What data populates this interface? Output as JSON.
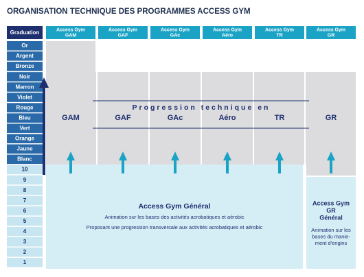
{
  "title": "ORGANISATION TECHNIQUE DES PROGRAMMES ACCESS GYM",
  "graduation": {
    "header": "Graduation",
    "grades": [
      "Or",
      "Argent",
      "Bronze",
      "Noir",
      "Marron",
      "Violet",
      "Rouge",
      "Bleu",
      "Vert",
      "Orange",
      "Jaune",
      "Blanc"
    ],
    "levels": [
      "10",
      "9",
      "8",
      "7",
      "6",
      "5",
      "4",
      "3",
      "2",
      "1"
    ]
  },
  "programs": [
    {
      "header": [
        "Access Gym",
        "GAM"
      ],
      "label": "GAM"
    },
    {
      "header": [
        "Access Gym",
        "GAF"
      ],
      "label": "GAF"
    },
    {
      "header": [
        "Access Gym",
        "GAc"
      ],
      "label": "GAc"
    },
    {
      "header": [
        "Access Gym",
        "Aéro"
      ],
      "label": "Aéro"
    },
    {
      "header": [
        "Access Gym",
        "TR"
      ],
      "label": "TR"
    },
    {
      "header": [
        "Access Gym",
        "GR"
      ],
      "label": "GR"
    }
  ],
  "progression": "Progression technique en",
  "general": {
    "title": "Access Gym Général",
    "lines": [
      "Animation sur les bases des activités acrobatiques et aérobic",
      "Proposant une progression transversale aux activités acrobatiques et aérobic"
    ]
  },
  "gr_general": {
    "title": [
      "Access Gym",
      "GR",
      "Général"
    ],
    "lines": [
      "Animation sur les",
      "bases du manie-",
      "ment d'engins"
    ]
  }
}
